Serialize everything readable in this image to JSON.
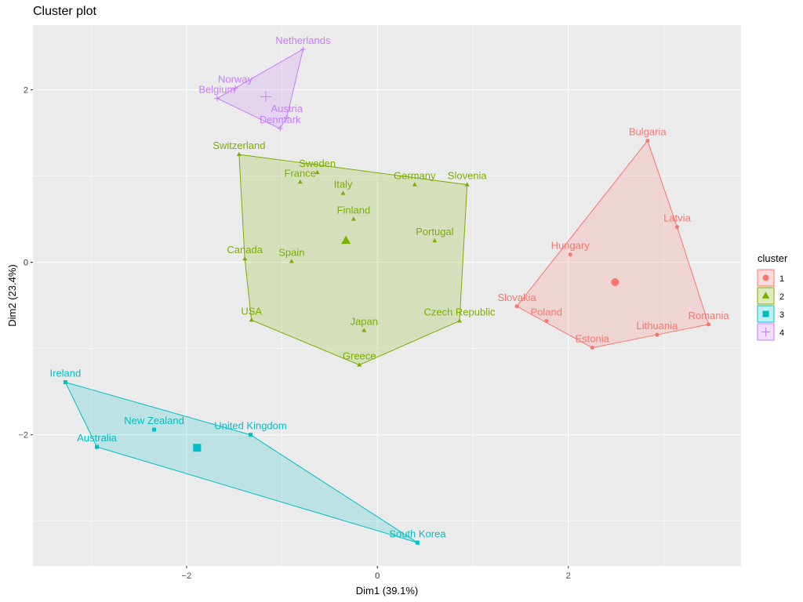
{
  "chart_data": {
    "type": "scatter",
    "title": "Cluster plot",
    "xlabel": "Dim1 (39.1%)",
    "ylabel": "Dim2 (23.4%)",
    "xlim": [
      -3.61,
      3.81
    ],
    "ylim": [
      -3.52,
      2.75
    ],
    "xticks": [
      -2,
      0,
      2
    ],
    "yticks": [
      -2,
      0,
      2
    ],
    "grid": true,
    "legend": {
      "title": "cluster",
      "position": "right"
    },
    "series": [
      {
        "name": "1",
        "color": "#F8766D",
        "shape": "circle",
        "center": [
          2.49,
          -0.23
        ],
        "points": [
          [
            "Bulgaria",
            2.83,
            1.41
          ],
          [
            "Latvia",
            3.14,
            0.41
          ],
          [
            "Hungary",
            2.02,
            0.09
          ],
          [
            "Slovakia",
            1.46,
            -0.51
          ],
          [
            "Poland",
            1.77,
            -0.68
          ],
          [
            "Estonia",
            2.25,
            -0.99
          ],
          [
            "Lithuania",
            2.93,
            -0.84
          ],
          [
            "Romania",
            3.47,
            -0.72
          ]
        ]
      },
      {
        "name": "2",
        "color": "#7CAE00",
        "shape": "triangle",
        "center": [
          -0.33,
          0.25
        ],
        "points": [
          [
            "Switzerland",
            -1.45,
            1.25
          ],
          [
            "Sweden",
            -0.63,
            1.04
          ],
          [
            "France",
            -0.81,
            0.93
          ],
          [
            "Italy",
            -0.36,
            0.8
          ],
          [
            "Germany",
            0.39,
            0.9
          ],
          [
            "Slovenia",
            0.94,
            0.9
          ],
          [
            "Finland",
            -0.25,
            0.5
          ],
          [
            "Portugal",
            0.6,
            0.25
          ],
          [
            "Canada",
            -1.39,
            0.04
          ],
          [
            "Spain",
            -0.9,
            0.01
          ],
          [
            "USA",
            -1.32,
            -0.67
          ],
          [
            "Japan",
            -0.14,
            -0.79
          ],
          [
            "Czech Republic",
            0.86,
            -0.68
          ],
          [
            "Greece",
            -0.19,
            -1.19
          ]
        ]
      },
      {
        "name": "3",
        "color": "#00BFC4",
        "shape": "square",
        "center": [
          -1.89,
          -2.15
        ],
        "points": [
          [
            "Ireland",
            -3.27,
            -1.39
          ],
          [
            "New Zealand",
            -2.34,
            -1.94
          ],
          [
            "United Kingdom",
            -1.33,
            -2.0
          ],
          [
            "Australia",
            -2.94,
            -2.14
          ],
          [
            "South Korea",
            0.42,
            -3.25
          ]
        ]
      },
      {
        "name": "4",
        "color": "#C77CFF",
        "shape": "plus",
        "center": [
          -1.17,
          1.92
        ],
        "points": [
          [
            "Netherlands",
            -0.78,
            2.47
          ],
          [
            "Norway",
            -1.49,
            2.02
          ],
          [
            "Belgium",
            -1.68,
            1.9
          ],
          [
            "Austria",
            -0.95,
            1.68
          ],
          [
            "Denmark",
            -1.02,
            1.55
          ]
        ]
      }
    ]
  }
}
